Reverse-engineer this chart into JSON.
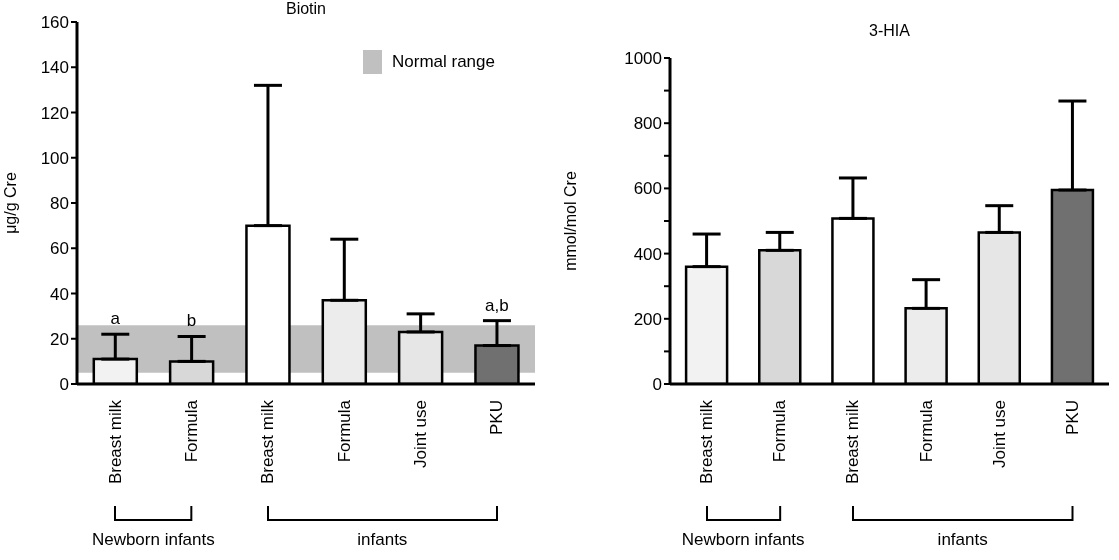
{
  "chart_data": [
    {
      "type": "bar",
      "title": "Biotin",
      "ylabel": "μg/g Cre",
      "categories": [
        "Breast milk",
        "Formula",
        "Breast milk",
        "Formula",
        "Joint use",
        "PKU"
      ],
      "values": [
        11,
        10,
        70,
        37,
        23,
        17
      ],
      "errors": [
        [
          11,
          22
        ],
        [
          10,
          21
        ],
        [
          70,
          132
        ],
        [
          37,
          64
        ],
        [
          23,
          31
        ],
        [
          17,
          28
        ]
      ],
      "colors": [
        "#f2f2f2",
        "#d8d8d8",
        "#ffffff",
        "#ececec",
        "#e6e6e6",
        "#707070"
      ],
      "ylim": [
        0,
        160
      ],
      "yticks": [
        0,
        20,
        40,
        60,
        80,
        100,
        120,
        140,
        160
      ],
      "bands": [
        {
          "axis": "y",
          "from": 5,
          "to": 26,
          "label": "Normal range",
          "color": "#c0c0c0"
        }
      ],
      "legend": "top right",
      "annotations": [
        {
          "text": "a",
          "x": "Breast milk",
          "y": 22
        },
        {
          "text": "b",
          "x": "Formula",
          "y": 21
        },
        {
          "text": "a,b",
          "x": "PKU",
          "y": 28
        },
        "Newborn infants",
        "infants"
      ]
    },
    {
      "type": "bar",
      "title": "3-HIA",
      "ylabel": "mmol/mol Cre",
      "categories": [
        "Breast milk",
        "Formula",
        "Breast milk",
        "Formula",
        "Joint use",
        "PKU"
      ],
      "values": [
        360,
        410,
        508,
        232,
        465,
        595
      ],
      "errors": [
        [
          360,
          460
        ],
        [
          410,
          465
        ],
        [
          508,
          632
        ],
        [
          232,
          320
        ],
        [
          465,
          547
        ],
        [
          595,
          868
        ]
      ],
      "colors": [
        "#f2f2f2",
        "#d8d8d8",
        "#ffffff",
        "#ececec",
        "#e6e6e6",
        "#707070"
      ],
      "ylim": [
        0,
        1000
      ],
      "yticks": [
        0,
        {
          "value": 100,
          "label": null
        },
        200,
        {
          "value": 300,
          "label": null
        },
        400,
        {
          "value": 500,
          "label": null
        },
        600,
        {
          "value": 700,
          "label": null
        },
        800,
        {
          "value": 900,
          "label": null
        },
        1000
      ],
      "annotations": [
        "Newborn infants",
        "infants"
      ]
    }
  ]
}
